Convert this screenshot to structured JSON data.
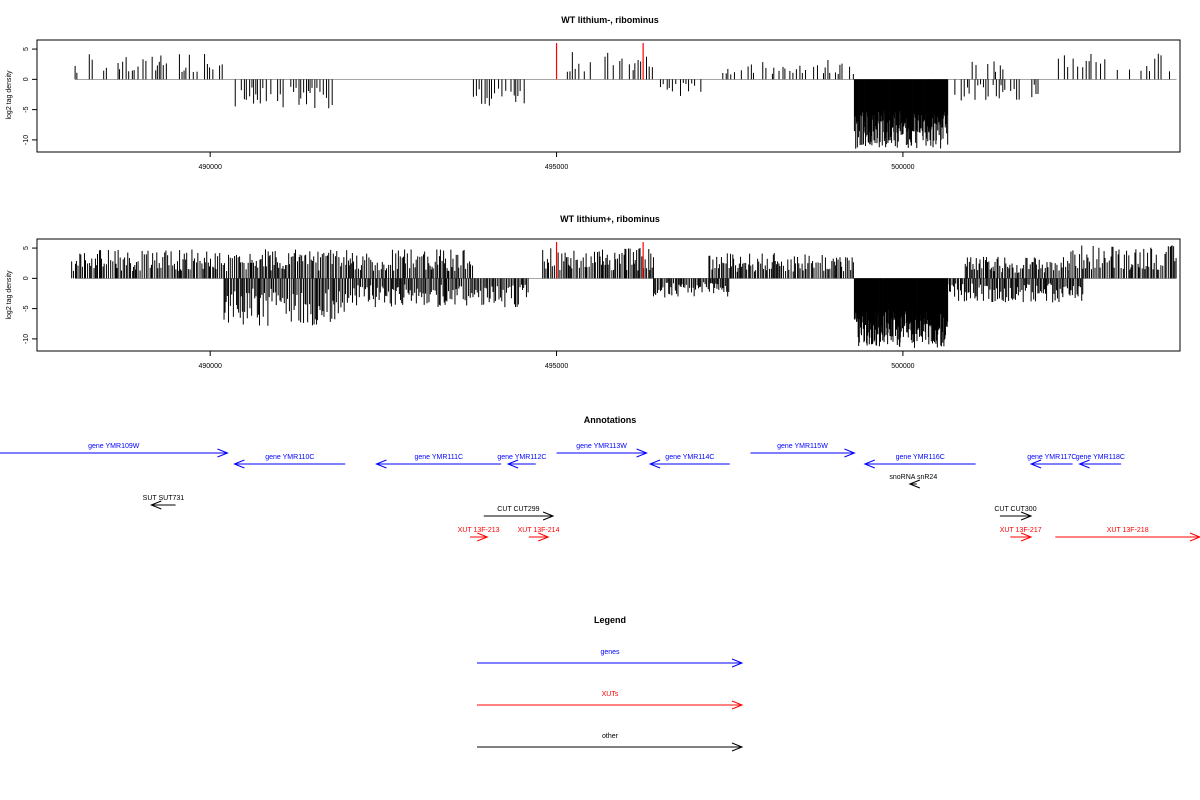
{
  "chart_data": [
    {
      "type": "bar",
      "title": "WT lithium-, ribominus",
      "ylabel": "log2 tag density",
      "xlim": [
        487500,
        504000
      ],
      "ylim": [
        -12,
        6.5
      ],
      "xticks": [
        "490000",
        "495000",
        "500000"
      ],
      "yticks": [
        "5",
        "0",
        "-5",
        "-10"
      ],
      "highlight_color": "#ff0000",
      "bar_color": "#000000",
      "positive_regions": [
        {
          "start": 488050,
          "end": 490250,
          "max": 4.2
        },
        {
          "start": 494950,
          "end": 496400,
          "max": 4.5
        },
        {
          "start": 497400,
          "end": 499300,
          "max": 3.2
        },
        {
          "start": 501000,
          "end": 501500,
          "max": 3.0
        },
        {
          "start": 502200,
          "end": 503950,
          "max": 4.6
        }
      ],
      "negative_regions": [
        {
          "start": 490300,
          "end": 491800,
          "min": -4.8
        },
        {
          "start": 493800,
          "end": 494600,
          "min": -4.5
        },
        {
          "start": 496500,
          "end": 497100,
          "min": -2.8
        },
        {
          "start": 499300,
          "end": 500650,
          "min": -11.5
        },
        {
          "start": 500750,
          "end": 502000,
          "min": -3.5
        }
      ],
      "red_markers": [
        {
          "x": 495000,
          "y": 6.0
        },
        {
          "x": 496250,
          "y": 6.0
        }
      ]
    },
    {
      "type": "bar",
      "title": "WT lithium+, ribominus",
      "ylabel": "log2 tag density",
      "xlim": [
        487500,
        504000
      ],
      "ylim": [
        -12,
        6.5
      ],
      "xticks": [
        "490000",
        "495000",
        "500000"
      ],
      "yticks": [
        "5",
        "0",
        "-5",
        "-10"
      ],
      "highlight_color": "#ff0000",
      "bar_color": "#000000",
      "positive_regions": [
        {
          "start": 488000,
          "end": 493800,
          "max": 4.8
        },
        {
          "start": 494800,
          "end": 496400,
          "max": 5.0
        },
        {
          "start": 497200,
          "end": 499300,
          "max": 4.2
        },
        {
          "start": 500900,
          "end": 502400,
          "max": 3.6
        },
        {
          "start": 502400,
          "end": 503950,
          "max": 5.5
        }
      ],
      "negative_regions": [
        {
          "start": 490200,
          "end": 492000,
          "min": -8.2
        },
        {
          "start": 492000,
          "end": 494600,
          "min": -4.8
        },
        {
          "start": 496400,
          "end": 497500,
          "min": -3.2
        },
        {
          "start": 499300,
          "end": 500650,
          "min": -11.5
        },
        {
          "start": 500650,
          "end": 502600,
          "min": -4.0
        }
      ],
      "red_markers": [
        {
          "x": 495000,
          "y": 6.0
        },
        {
          "x": 496250,
          "y": 6.0
        }
      ]
    }
  ],
  "annotations": {
    "title": "Annotations",
    "colors": {
      "genes": "#0000ff",
      "xuts": "#ff0000",
      "other": "#000000"
    },
    "features": [
      {
        "label": "gene YMR109W",
        "start": 485000,
        "end": 490250,
        "strand": "+",
        "kind": "genes",
        "row": 0
      },
      {
        "label": "gene YMR110C",
        "start": 490350,
        "end": 491950,
        "strand": "-",
        "kind": "genes",
        "row": 1
      },
      {
        "label": "gene YMR111C",
        "start": 492400,
        "end": 494200,
        "strand": "-",
        "kind": "genes",
        "row": 1
      },
      {
        "label": "gene YMR112C",
        "start": 494300,
        "end": 494700,
        "strand": "-",
        "kind": "genes",
        "row": 1
      },
      {
        "label": "gene YMR113W",
        "start": 495000,
        "end": 496300,
        "strand": "+",
        "kind": "genes",
        "row": 0
      },
      {
        "label": "gene YMR114C",
        "start": 496350,
        "end": 497500,
        "strand": "-",
        "kind": "genes",
        "row": 1
      },
      {
        "label": "gene YMR115W",
        "start": 497800,
        "end": 499300,
        "strand": "+",
        "kind": "genes",
        "row": 0
      },
      {
        "label": "gene YMR116C",
        "start": 499450,
        "end": 501050,
        "strand": "-",
        "kind": "genes",
        "row": 1
      },
      {
        "label": "gene YMR117C",
        "start": 501850,
        "end": 502450,
        "strand": "-",
        "kind": "genes",
        "row": 1
      },
      {
        "label": "gene YMR118C",
        "start": 502550,
        "end": 503150,
        "strand": "-",
        "kind": "genes",
        "row": 1
      },
      {
        "label": "snoRNA snR24",
        "start": 500100,
        "end": 500200,
        "strand": "-",
        "kind": "other",
        "row": 2
      },
      {
        "label": "SUT SUT731",
        "start": 489150,
        "end": 489500,
        "strand": "-",
        "kind": "other",
        "row": 3
      },
      {
        "label": "CUT CUT299",
        "start": 493950,
        "end": 494950,
        "strand": "+",
        "kind": "other",
        "row": 4
      },
      {
        "label": "CUT CUT300",
        "start": 501400,
        "end": 501850,
        "strand": "+",
        "kind": "other",
        "row": 4
      },
      {
        "label": "XUT 13F-213",
        "start": 493750,
        "end": 494000,
        "strand": "+",
        "kind": "xuts",
        "row": 5
      },
      {
        "label": "XUT 13F-214",
        "start": 494600,
        "end": 494880,
        "strand": "+",
        "kind": "xuts",
        "row": 5
      },
      {
        "label": "XUT 13F-217",
        "start": 501550,
        "end": 501850,
        "strand": "+",
        "kind": "xuts",
        "row": 5
      },
      {
        "label": "XUT 13F-218",
        "start": 502200,
        "end": 504600,
        "strand": "+",
        "kind": "xuts",
        "row": 5
      }
    ]
  },
  "legend": {
    "title": "Legend",
    "items": [
      {
        "label": "genes",
        "color": "#0000ff"
      },
      {
        "label": "XUTs",
        "color": "#ff0000"
      },
      {
        "label": "other",
        "color": "#000000"
      }
    ]
  }
}
